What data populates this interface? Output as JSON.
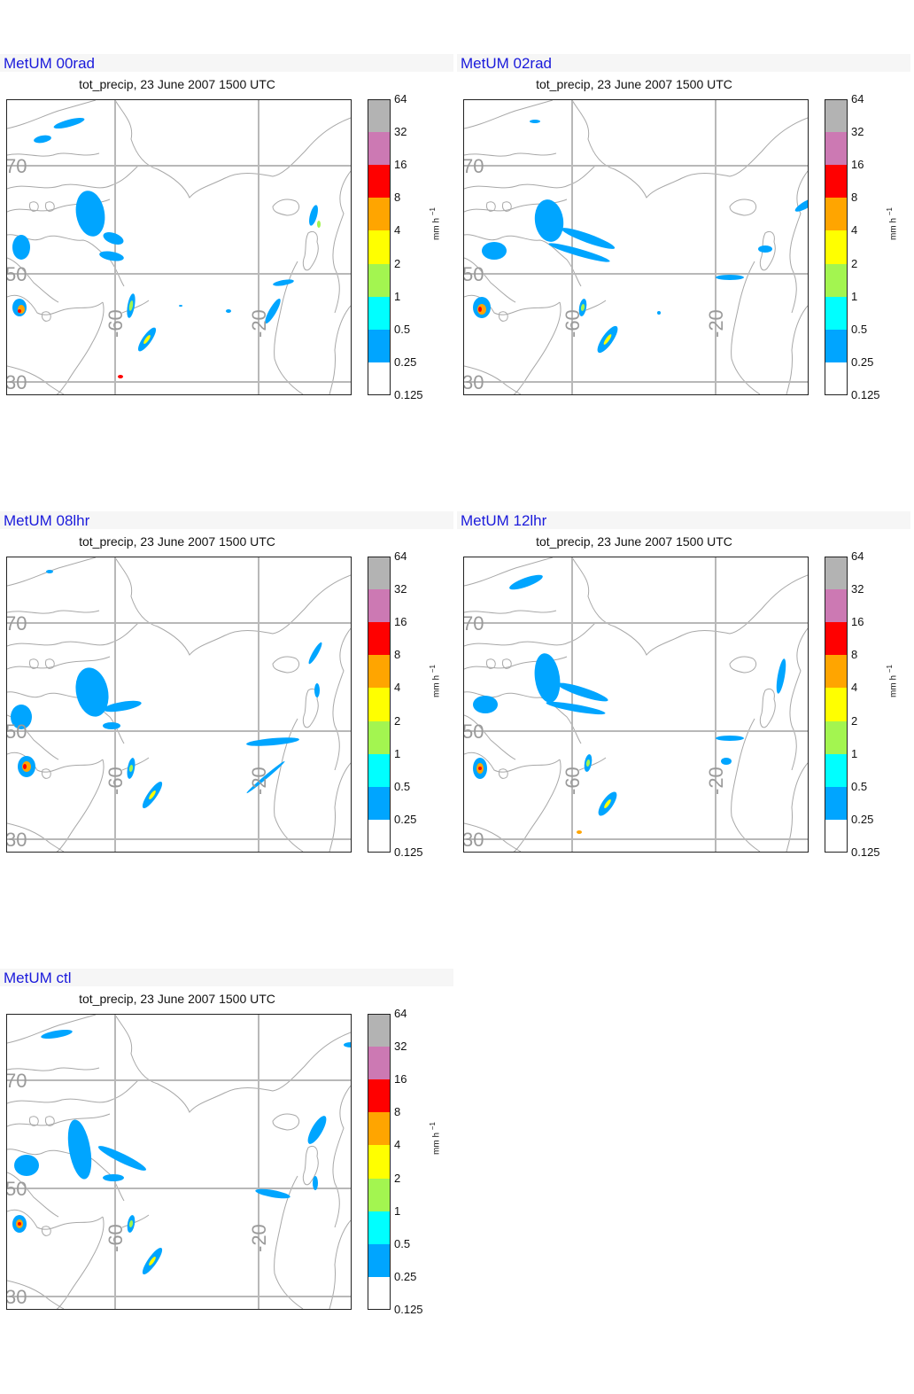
{
  "panels": [
    {
      "id": "p00rad",
      "title": "MetUM 00rad",
      "subtitle": "tot_precip, 23 June 2007 1500 UTC"
    },
    {
      "id": "p02rad",
      "title": "MetUM 02rad",
      "subtitle": "tot_precip, 23 June 2007 1500 UTC"
    },
    {
      "id": "p08lhr",
      "title": "MetUM 08lhr",
      "subtitle": "tot_precip, 23 June 2007 1500 UTC"
    },
    {
      "id": "p12lhr",
      "title": "MetUM 12lhr",
      "subtitle": "tot_precip, 23 June 2007 1500 UTC"
    },
    {
      "id": "pctl",
      "title": "MetUM ctl",
      "subtitle": "tot_precip, 23 June 2007 1500 UTC"
    }
  ],
  "map_grid": {
    "lat_labels": [
      "70",
      "50",
      "30"
    ],
    "lon_labels": [
      "-60",
      "-20"
    ]
  },
  "colorbar": {
    "unit_main": "mm h",
    "unit_exp": "−1",
    "ticks": [
      "64",
      "32",
      "16",
      "8",
      "4",
      "2",
      "1",
      "0.5",
      "0.25",
      "0.125"
    ],
    "colors": [
      "#b3b3b3",
      "#cc79b3",
      "#ff0000",
      "#ffa500",
      "#ffff00",
      "#a3f550",
      "#00ffff",
      "#00a5ff",
      "#ffffff"
    ]
  }
}
